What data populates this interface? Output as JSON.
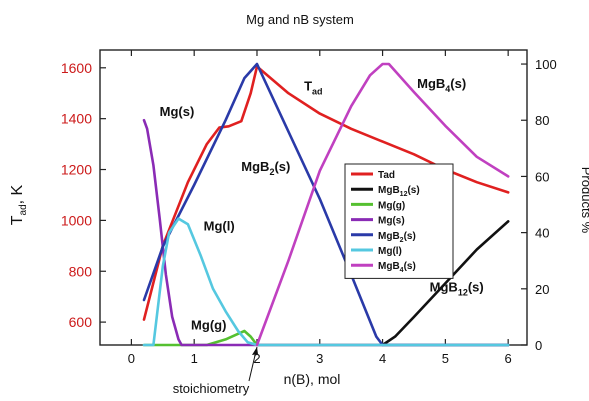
{
  "chart_data": {
    "type": "line",
    "title": "Mg and nB system",
    "xlabel": "n(B), mol",
    "ylabel_left_main": "T",
    "ylabel_left_sub": "ad",
    "ylabel_left_unit": ", K",
    "ylabel_right": "Products %",
    "xlim": [
      -0.5,
      6.3
    ],
    "ylim_left": [
      510,
      1670
    ],
    "ylim_right": [
      0,
      105
    ],
    "x_ticks": [
      0,
      1,
      2,
      3,
      4,
      5,
      6
    ],
    "y_left_ticks": [
      600,
      800,
      1000,
      1200,
      1400,
      1600
    ],
    "y_right_ticks": [
      0,
      20,
      40,
      60,
      80,
      100
    ],
    "stoichiometry_label": "stoichiometry",
    "stoichiometry_x": 2,
    "legend_position": "center-right",
    "series": [
      {
        "name": "Tad",
        "axis": "left",
        "color": "#e02020",
        "x": [
          0.2,
          0.5,
          0.9,
          1.2,
          1.4,
          1.55,
          1.75,
          1.9,
          2.0,
          2.5,
          3.0,
          3.5,
          4.0,
          4.5,
          5.0,
          5.5,
          6.0
        ],
        "y": [
          610,
          900,
          1150,
          1300,
          1365,
          1370,
          1390,
          1500,
          1605,
          1500,
          1420,
          1360,
          1310,
          1260,
          1200,
          1150,
          1110
        ]
      },
      {
        "name": "MgB12(s)",
        "axis": "right",
        "color": "#111111",
        "x": [
          4.0,
          4.2,
          4.5,
          5.0,
          5.5,
          6.0
        ],
        "y": [
          0,
          3,
          10,
          22,
          34,
          44
        ]
      },
      {
        "name": "Mg(g)",
        "axis": "right",
        "color": "#55c030",
        "x": [
          0.2,
          1.2,
          1.5,
          1.7,
          1.8,
          1.9,
          2.0,
          6.0
        ],
        "y": [
          0,
          0,
          2,
          4,
          5,
          3,
          0,
          0
        ]
      },
      {
        "name": "Mg(s)",
        "axis": "right",
        "color": "#8a2bb5",
        "x": [
          0.2,
          0.25,
          0.35,
          0.45,
          0.55,
          0.65,
          0.75,
          0.8,
          6.0
        ],
        "y": [
          80,
          77,
          64,
          45,
          25,
          10,
          2,
          0,
          0
        ]
      },
      {
        "name": "MgB2(s)",
        "axis": "right",
        "color": "#2a3aa8",
        "x": [
          0.2,
          0.5,
          1.0,
          1.5,
          1.8,
          2.0,
          2.5,
          3.0,
          3.5,
          3.9,
          4.0,
          4.2,
          6.0
        ],
        "y": [
          16,
          35,
          57,
          80,
          95,
          100,
          76,
          52,
          25,
          3,
          0,
          0,
          0
        ]
      },
      {
        "name": "Mg(l)",
        "axis": "right",
        "color": "#55c8e0",
        "x": [
          0.2,
          0.35,
          0.5,
          0.6,
          0.75,
          0.9,
          1.1,
          1.3,
          1.5,
          1.7,
          1.85,
          2.0,
          6.0
        ],
        "y": [
          0,
          0,
          28,
          40,
          45,
          43,
          32,
          20,
          12,
          5,
          1,
          0,
          0
        ]
      },
      {
        "name": "MgB4(s)",
        "axis": "right",
        "color": "#c040c0",
        "x": [
          2.0,
          2.5,
          3.0,
          3.5,
          3.8,
          4.0,
          4.1,
          4.5,
          5.0,
          5.5,
          6.0
        ],
        "y": [
          0,
          30,
          62,
          85,
          96,
          100,
          100,
          90,
          78,
          67,
          60
        ]
      }
    ],
    "annotations": [
      {
        "text": "Mg(s)",
        "color": "#111111",
        "x": 0.45,
        "y": 1410,
        "axis": "left"
      },
      {
        "text": "Mg(l)",
        "color": "#111111",
        "x": 1.15,
        "y": 960,
        "axis": "left"
      },
      {
        "text": "Mg(g)",
        "color": "#111111",
        "x": 0.95,
        "y": 570,
        "axis": "left"
      },
      {
        "text": "MgB",
        "sub": "2",
        "tail": "(s)",
        "color": "#111111",
        "x": 1.75,
        "y": 1195,
        "axis": "left"
      },
      {
        "text": "T",
        "sub": "ad",
        "tail": "",
        "color": "#111111",
        "x": 2.75,
        "y": 1510,
        "axis": "left"
      },
      {
        "text": "MgB",
        "sub": "4",
        "tail": "(s)",
        "color": "#111111",
        "x": 4.55,
        "y": 1520,
        "axis": "left"
      },
      {
        "text": "MgB",
        "sub": "12",
        "tail": "(s)",
        "color": "#111111",
        "x": 4.75,
        "y": 720,
        "axis": "left"
      }
    ],
    "legend": [
      {
        "label": "Tad",
        "sub": "",
        "tail": "",
        "color": "#e02020"
      },
      {
        "label": "MgB",
        "sub": "12",
        "tail": "(s)",
        "color": "#111111"
      },
      {
        "label": "Mg(g)",
        "sub": "",
        "tail": "",
        "color": "#55c030"
      },
      {
        "label": "Mg(s)",
        "sub": "",
        "tail": "",
        "color": "#8a2bb5"
      },
      {
        "label": "MgB",
        "sub": "2",
        "tail": "(s)",
        "color": "#2a3aa8"
      },
      {
        "label": "Mg(l)",
        "sub": "",
        "tail": "",
        "color": "#55c8e0"
      },
      {
        "label": "MgB",
        "sub": "4",
        "tail": "(s)",
        "color": "#c040c0"
      }
    ]
  }
}
